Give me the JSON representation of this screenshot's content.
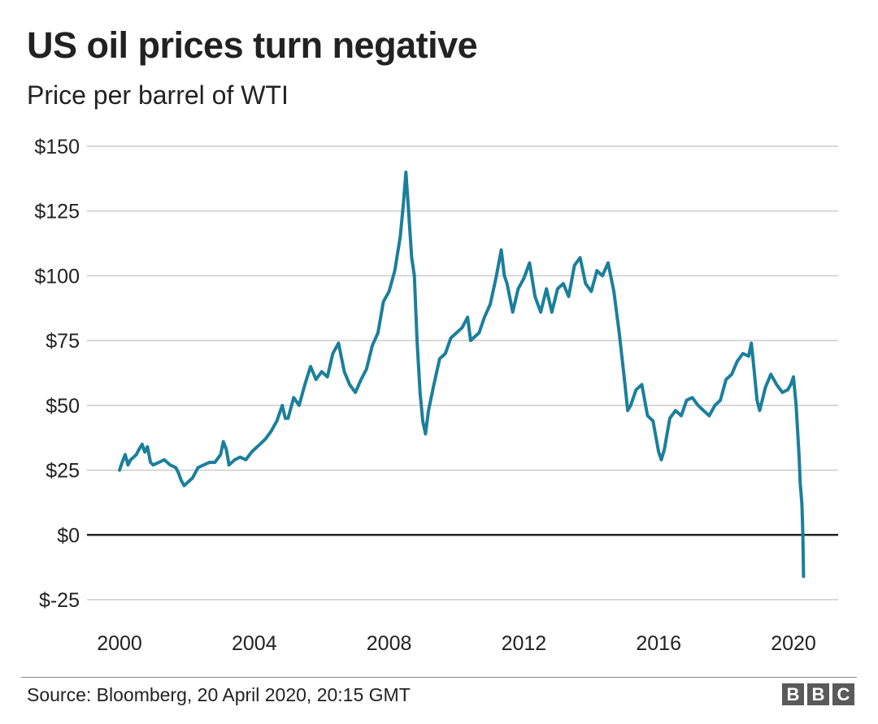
{
  "title": "US oil prices turn negative",
  "subtitle": "Price per barrel of WTI",
  "source": "Source: Bloomberg, 20 April 2020, 20:15 GMT",
  "logo": [
    "B",
    "B",
    "C"
  ],
  "colors": {
    "line": "#1b7f9c",
    "grid": "#cccccc",
    "zero": "#222222",
    "text": "#222222"
  },
  "chart_data": {
    "type": "line",
    "title": "US oil prices turn negative",
    "subtitle": "Price per barrel of WTI",
    "ylim": [
      -25,
      150
    ],
    "xlim": [
      2000,
      2020.3
    ],
    "y_ticks": [
      150,
      125,
      100,
      75,
      50,
      25,
      0,
      -25
    ],
    "y_tick_labels": [
      "$150",
      "$125",
      "$100",
      "$75",
      "$50",
      "$25",
      "$0",
      "$-25"
    ],
    "x_ticks": [
      2000,
      2004,
      2008,
      2012,
      2016,
      2020
    ],
    "x_tick_labels": [
      "2000",
      "2004",
      "2008",
      "2012",
      "2016",
      "2020"
    ],
    "grid": true,
    "series": [
      {
        "x": [
          2000.0,
          2000.08,
          2000.17,
          2000.25,
          2000.33,
          2000.42,
          2000.5,
          2000.58,
          2000.67,
          2000.75,
          2000.83,
          2000.92,
          2001.0,
          2001.17,
          2001.33,
          2001.5,
          2001.67,
          2001.75,
          2001.83,
          2001.92,
          2002.0,
          2002.17,
          2002.33,
          2002.5,
          2002.67,
          2002.83,
          2003.0,
          2003.08,
          2003.17,
          2003.25,
          2003.42,
          2003.58,
          2003.75,
          2003.92,
          2004.0,
          2004.17,
          2004.33,
          2004.5,
          2004.67,
          2004.83,
          2004.92,
          2005.0,
          2005.17,
          2005.33,
          2005.5,
          2005.67,
          2005.83,
          2006.0,
          2006.17,
          2006.33,
          2006.5,
          2006.67,
          2006.83,
          2007.0,
          2007.17,
          2007.33,
          2007.5,
          2007.67,
          2007.83,
          2008.0,
          2008.17,
          2008.33,
          2008.42,
          2008.5,
          2008.58,
          2008.67,
          2008.75,
          2008.83,
          2008.92,
          2009.0,
          2009.08,
          2009.17,
          2009.33,
          2009.5,
          2009.67,
          2009.83,
          2010.0,
          2010.17,
          2010.33,
          2010.42,
          2010.5,
          2010.67,
          2010.83,
          2011.0,
          2011.17,
          2011.33,
          2011.42,
          2011.5,
          2011.67,
          2011.83,
          2012.0,
          2012.17,
          2012.33,
          2012.5,
          2012.67,
          2012.83,
          2013.0,
          2013.17,
          2013.33,
          2013.5,
          2013.67,
          2013.83,
          2014.0,
          2014.17,
          2014.33,
          2014.5,
          2014.67,
          2014.83,
          2015.0,
          2015.08,
          2015.17,
          2015.33,
          2015.5,
          2015.67,
          2015.83,
          2016.0,
          2016.08,
          2016.17,
          2016.33,
          2016.5,
          2016.67,
          2016.83,
          2017.0,
          2017.17,
          2017.33,
          2017.5,
          2017.67,
          2017.83,
          2018.0,
          2018.17,
          2018.33,
          2018.5,
          2018.67,
          2018.75,
          2018.83,
          2018.92,
          2019.0,
          2019.17,
          2019.33,
          2019.5,
          2019.67,
          2019.83,
          2019.92,
          2020.0,
          2020.08,
          2020.17,
          2020.2,
          2020.25,
          2020.28,
          2020.3
        ],
        "values": [
          25,
          28,
          31,
          27,
          29,
          30,
          31,
          33,
          35,
          32,
          34,
          28,
          27,
          28,
          29,
          27,
          26,
          24,
          21,
          19,
          20,
          22,
          26,
          27,
          28,
          28,
          31,
          36,
          33,
          27,
          29,
          30,
          29,
          32,
          33,
          35,
          37,
          40,
          44,
          50,
          45,
          45,
          53,
          50,
          58,
          65,
          60,
          63,
          61,
          70,
          74,
          63,
          58,
          55,
          60,
          64,
          73,
          78,
          90,
          94,
          102,
          115,
          127,
          140,
          125,
          107,
          100,
          75,
          55,
          44,
          39,
          48,
          58,
          68,
          70,
          76,
          78,
          80,
          84,
          75,
          76,
          78,
          84,
          89,
          99,
          110,
          100,
          97,
          86,
          95,
          99,
          105,
          92,
          86,
          95,
          86,
          95,
          97,
          92,
          104,
          107,
          97,
          94,
          102,
          100,
          105,
          94,
          78,
          58,
          48,
          50,
          56,
          58,
          46,
          44,
          32,
          29,
          33,
          45,
          48,
          46,
          52,
          53,
          50,
          48,
          46,
          50,
          52,
          60,
          62,
          67,
          70,
          69,
          74,
          64,
          52,
          48,
          57,
          62,
          58,
          55,
          56,
          58,
          61,
          50,
          30,
          20,
          12,
          0,
          -16
        ]
      }
    ],
    "annotations": []
  }
}
